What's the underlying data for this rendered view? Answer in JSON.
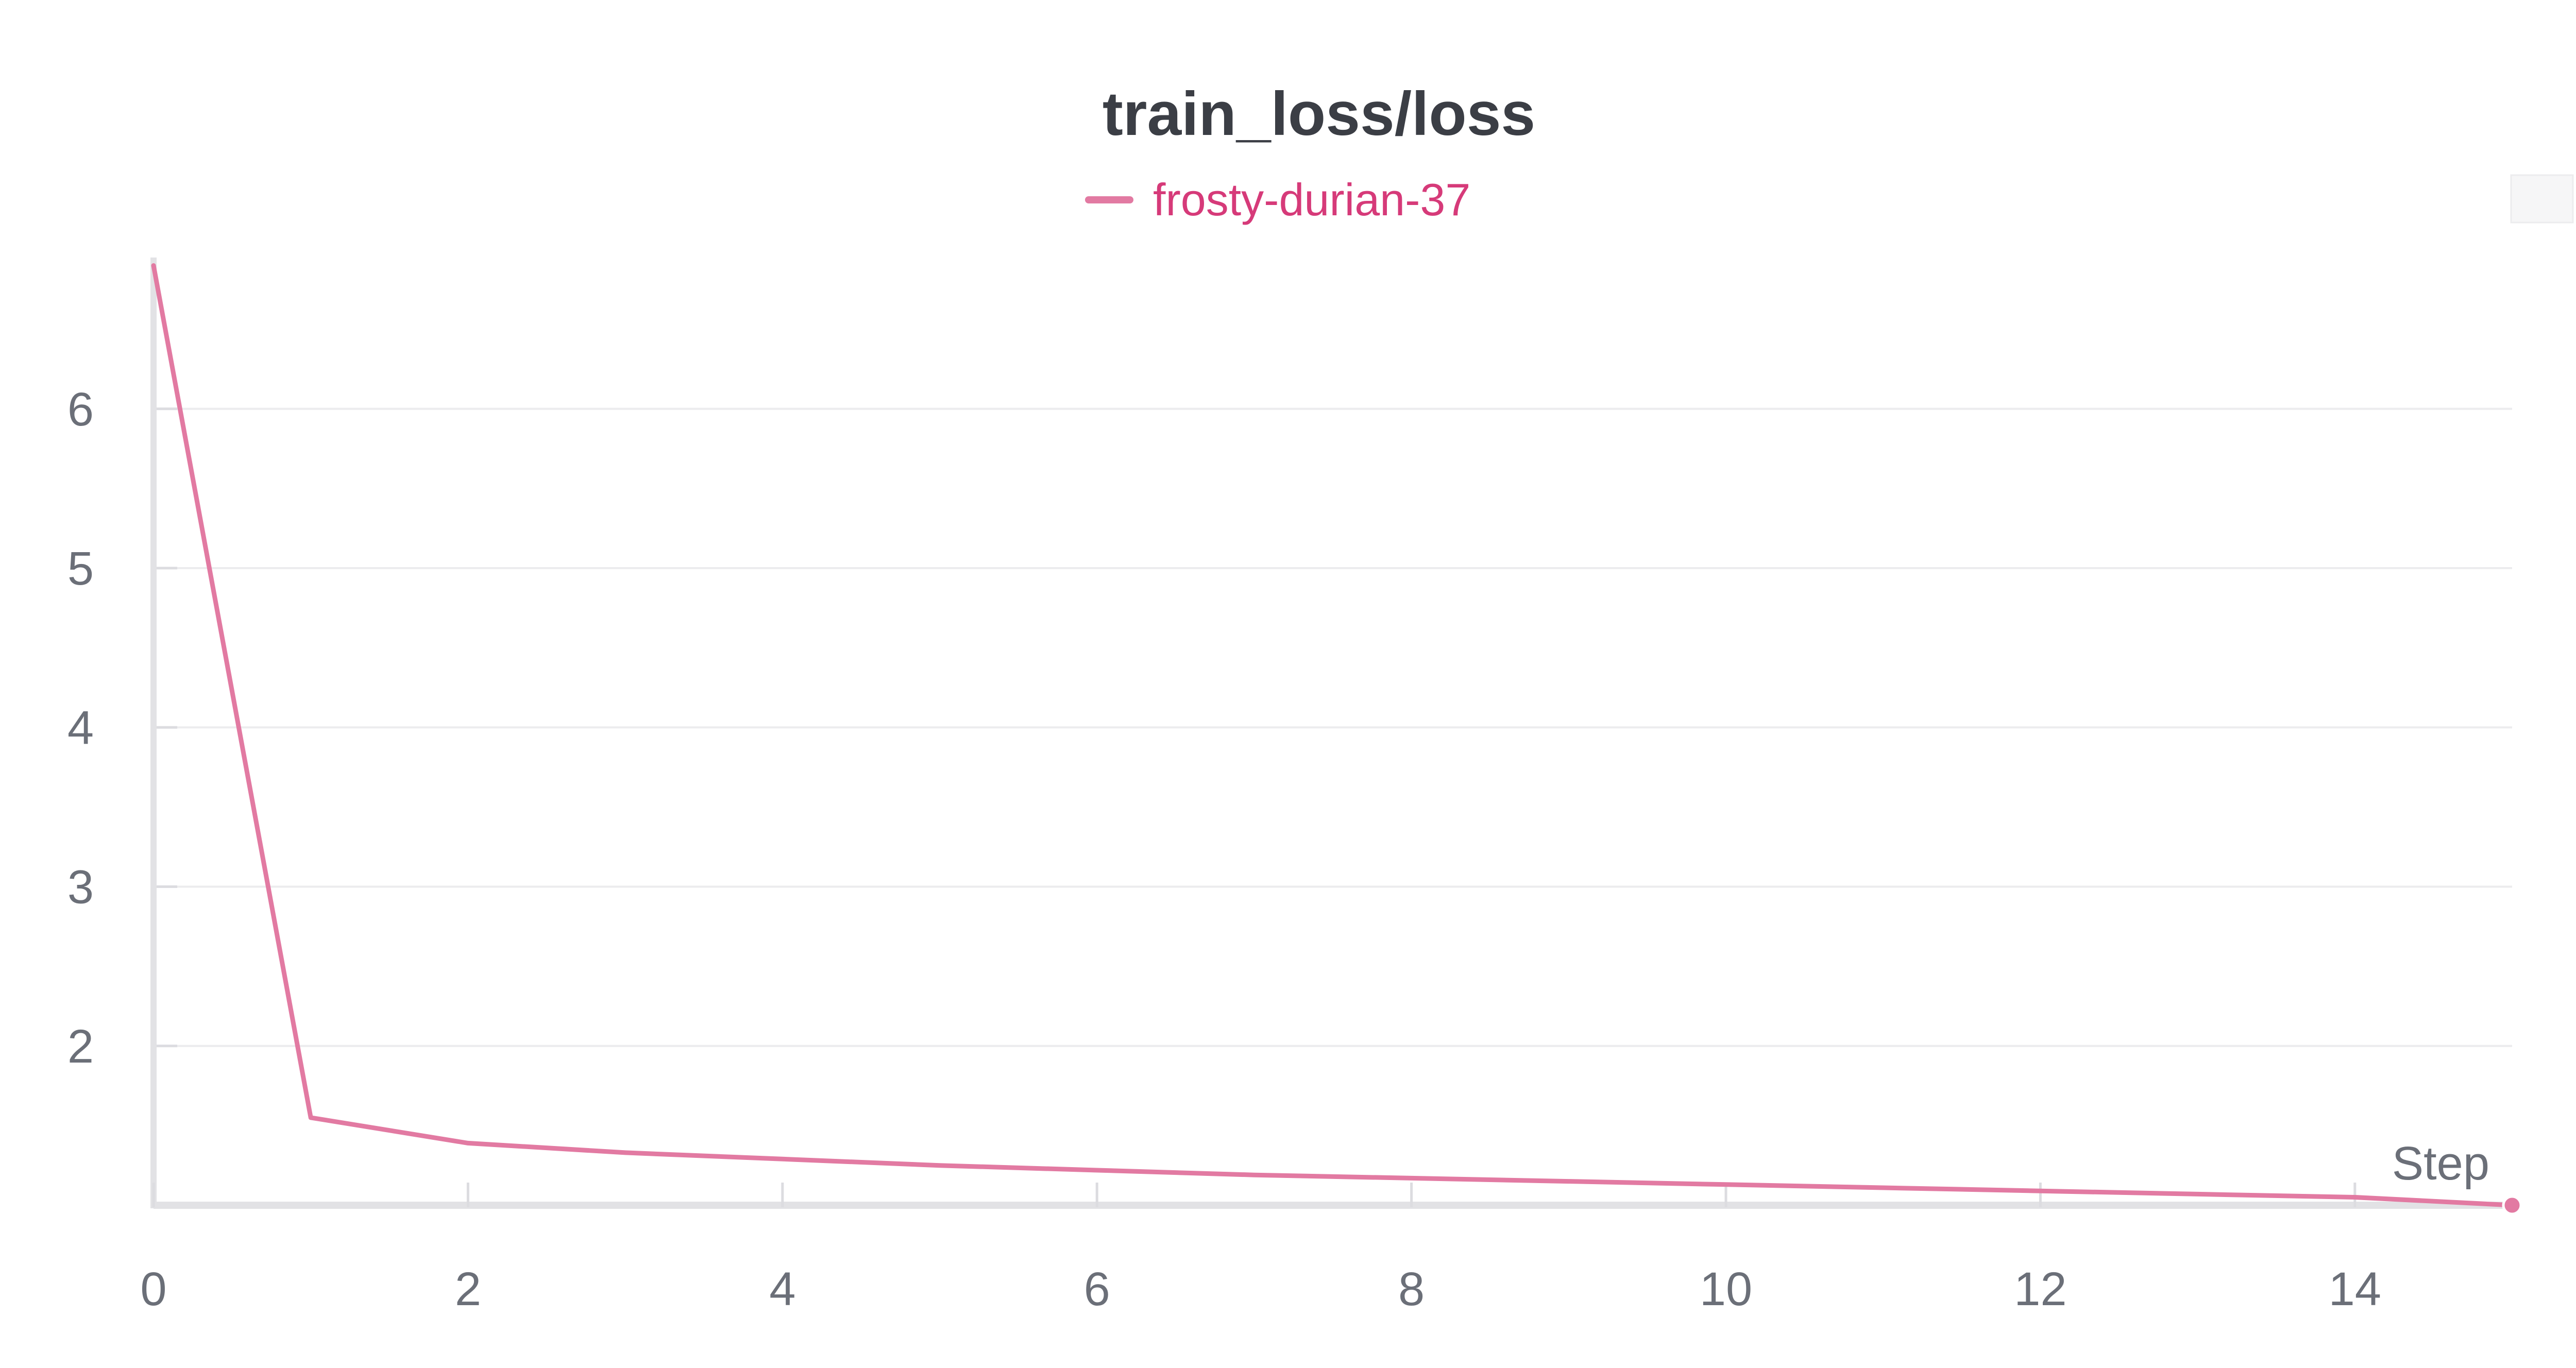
{
  "chart_data": {
    "type": "line",
    "title": "train_loss/loss",
    "xlabel": "Step",
    "ylabel": "",
    "xlim": [
      0,
      15
    ],
    "ylim": [
      1,
      6.95
    ],
    "x_ticks": [
      0,
      2,
      4,
      6,
      8,
      10,
      12,
      14
    ],
    "y_ticks": [
      2,
      3,
      4,
      5,
      6
    ],
    "grid": true,
    "legend_position": "top-center",
    "series": [
      {
        "name": "frosty-durian-37",
        "color": "#e27aa2",
        "x": [
          0,
          1,
          2,
          3,
          4,
          5,
          6,
          7,
          8,
          9,
          10,
          11,
          12,
          13,
          14,
          15
        ],
        "y": [
          6.9,
          1.55,
          1.39,
          1.33,
          1.29,
          1.25,
          1.22,
          1.19,
          1.17,
          1.15,
          1.13,
          1.11,
          1.09,
          1.07,
          1.05,
          1.0
        ]
      }
    ]
  },
  "legend": {
    "label_color": "#d63a79"
  }
}
